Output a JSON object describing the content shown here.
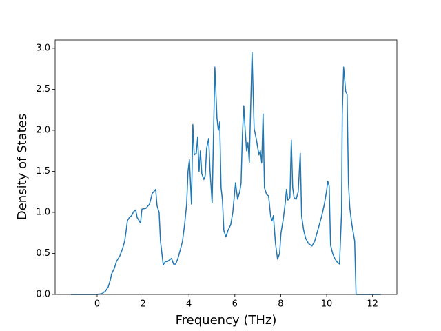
{
  "chart_data": {
    "type": "line",
    "xlabel": "Frequency (THz)",
    "ylabel": "Density of States",
    "color": "#1f77b4",
    "x": [
      -1.14,
      0,
      0.21,
      0.36,
      0.48,
      0.57,
      0.63,
      0.75,
      0.84,
      0.99,
      1.11,
      1.2,
      1.26,
      1.32,
      1.41,
      1.5,
      1.59,
      1.68,
      1.74,
      1.89,
      1.95,
      2.13,
      2.28,
      2.4,
      2.55,
      2.61,
      2.7,
      2.76,
      2.88,
      2.97,
      3.06,
      3.24,
      3.33,
      3.42,
      3.51,
      3.63,
      3.72,
      3.81,
      3.9,
      3.96,
      4.02,
      4.11,
      4.17,
      4.23,
      4.32,
      4.38,
      4.44,
      4.5,
      4.56,
      4.65,
      4.71,
      4.77,
      4.86,
      4.92,
      5.01,
      5.13,
      5.22,
      5.28,
      5.34,
      5.4,
      5.46,
      5.52,
      5.61,
      5.7,
      5.82,
      5.91,
      6.03,
      6.12,
      6.21,
      6.27,
      6.33,
      6.39,
      6.45,
      6.51,
      6.57,
      6.63,
      6.69,
      6.75,
      6.84,
      6.93,
      6.99,
      7.05,
      7.11,
      7.17,
      7.23,
      7.29,
      7.38,
      7.47,
      7.56,
      7.62,
      7.68,
      7.77,
      7.86,
      7.95,
      8.01,
      8.1,
      8.19,
      8.25,
      8.31,
      8.4,
      8.46,
      8.52,
      8.58,
      8.67,
      8.76,
      8.85,
      8.91,
      9.0,
      9.09,
      9.21,
      9.36,
      9.48,
      9.63,
      9.78,
      9.9,
      9.99,
      10.05,
      10.11,
      10.17,
      10.26,
      10.35,
      10.44,
      10.56,
      10.65,
      10.68,
      10.74,
      10.83,
      10.89,
      10.95,
      11.01,
      11.1,
      11.22,
      11.28,
      12.36
    ],
    "values": [
      0,
      0,
      0.01,
      0.04,
      0.09,
      0.17,
      0.25,
      0.32,
      0.4,
      0.47,
      0.56,
      0.65,
      0.77,
      0.9,
      0.94,
      0.96,
      1.01,
      1.03,
      0.94,
      0.87,
      1.04,
      1.05,
      1.1,
      1.23,
      1.28,
      1.08,
      1.0,
      0.65,
      0.36,
      0.4,
      0.4,
      0.44,
      0.37,
      0.37,
      0.43,
      0.55,
      0.65,
      0.85,
      1.1,
      1.5,
      1.64,
      1.1,
      2.07,
      1.7,
      1.72,
      1.92,
      1.5,
      1.75,
      1.47,
      1.4,
      1.45,
      1.78,
      1.9,
      1.5,
      1.12,
      2.77,
      2.15,
      2.0,
      2.1,
      1.3,
      1.15,
      0.78,
      0.7,
      0.78,
      0.85,
      1.0,
      1.36,
      1.16,
      1.25,
      1.35,
      1.95,
      2.3,
      2.0,
      1.75,
      1.85,
      1.61,
      2.3,
      2.95,
      2.02,
      1.9,
      1.8,
      1.7,
      1.75,
      1.6,
      2.2,
      1.3,
      1.22,
      1.2,
      0.95,
      0.9,
      0.96,
      0.62,
      0.43,
      0.5,
      0.75,
      0.9,
      1.1,
      1.28,
      1.15,
      1.18,
      1.88,
      1.3,
      1.18,
      1.16,
      1.25,
      1.72,
      0.95,
      0.78,
      0.68,
      0.62,
      0.59,
      0.65,
      0.8,
      0.95,
      1.1,
      1.25,
      1.38,
      1.32,
      0.6,
      0.5,
      0.44,
      0.4,
      0.37,
      1.0,
      2.2,
      2.77,
      2.47,
      2.44,
      1.35,
      1.05,
      0.85,
      0.65,
      0,
      0
    ],
    "xlim": [
      -1.83,
      13.06
    ],
    "ylim": [
      0,
      3.1
    ],
    "xticks": [
      0,
      2,
      4,
      6,
      8,
      10,
      12
    ],
    "yticks": [
      {
        "value": 0,
        "label": "0.0"
      },
      0.5,
      {
        "value": 1,
        "label": "1.0"
      },
      1.5,
      {
        "value": 2,
        "label": "2.0"
      },
      2.5,
      {
        "value": 3,
        "label": "3.0"
      }
    ]
  }
}
